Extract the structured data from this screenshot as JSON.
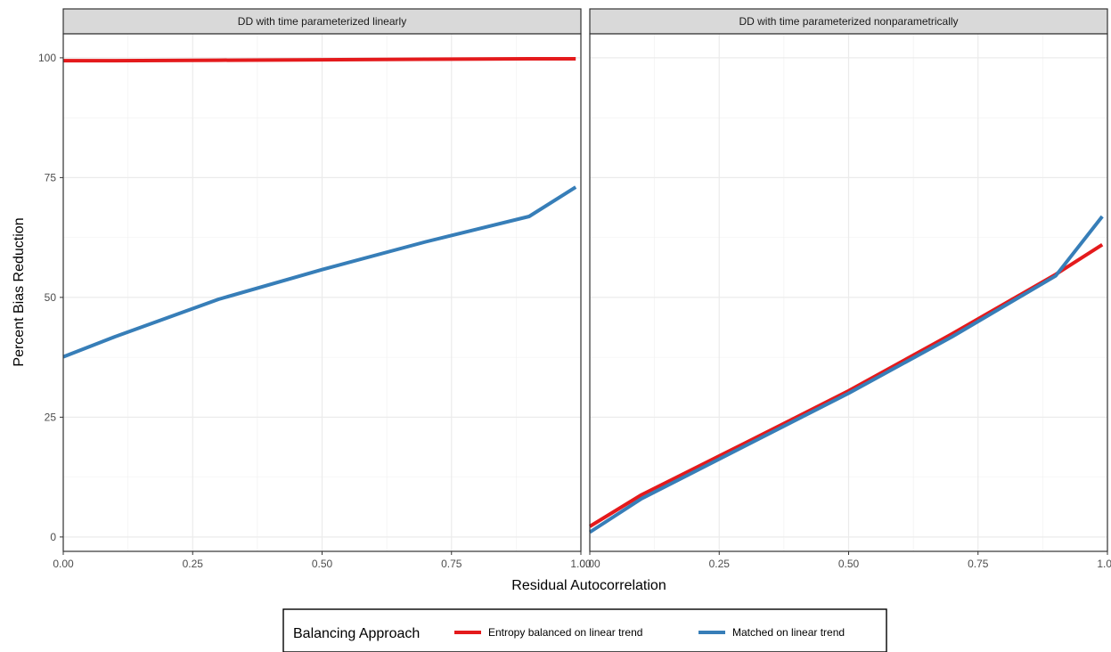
{
  "chart_data": {
    "type": "line",
    "xlabel": "Residual Autocorrelation",
    "ylabel": "Percent Bias Reduction",
    "xlim": [
      0,
      1
    ],
    "ylim": [
      -3,
      105
    ],
    "x_ticks": [
      0,
      0.25,
      0.5,
      0.75,
      1
    ],
    "x_tick_labels": [
      "0.00",
      "0.25",
      "0.50",
      "0.75",
      "1.00"
    ],
    "y_ticks": [
      0,
      25,
      50,
      75,
      100
    ],
    "y_tick_labels": [
      "0",
      "25",
      "50",
      "75",
      "100"
    ],
    "grid": true,
    "legend": {
      "title": "Balancing Approach",
      "position": "bottom",
      "entries": [
        "Entropy balanced on linear trend",
        "Matched on linear trend"
      ]
    },
    "colors": {
      "Entropy balanced on linear trend": "#E41A1C",
      "Matched on linear trend": "#377EB8"
    },
    "panels": [
      {
        "title": "DD with time parameterized linearly",
        "series": [
          {
            "name": "Entropy balanced on linear trend",
            "x": [
              0,
              0.1,
              0.3,
              0.5,
              0.7,
              0.9,
              0.99
            ],
            "y": [
              99.4,
              99.4,
              99.5,
              99.6,
              99.7,
              99.8,
              99.8
            ]
          },
          {
            "name": "Matched on linear trend",
            "x": [
              0,
              0.1,
              0.3,
              0.5,
              0.7,
              0.9,
              0.99
            ],
            "y": [
              37.6,
              41.8,
              49.6,
              55.8,
              61.6,
              66.9,
              73.0
            ]
          }
        ]
      },
      {
        "title": "DD with time parameterized nonparametrically",
        "series": [
          {
            "name": "Entropy balanced on linear trend",
            "x": [
              0,
              0.1,
              0.3,
              0.5,
              0.7,
              0.9,
              0.99
            ],
            "y": [
              2.2,
              8.8,
              19.6,
              30.5,
              42.4,
              54.8,
              61.0
            ]
          },
          {
            "name": "Matched on linear trend",
            "x": [
              0,
              0.1,
              0.3,
              0.5,
              0.7,
              0.9,
              0.99
            ],
            "y": [
              1.0,
              8.0,
              19.0,
              30.0,
              41.8,
              54.5,
              66.9
            ]
          }
        ]
      }
    ]
  }
}
